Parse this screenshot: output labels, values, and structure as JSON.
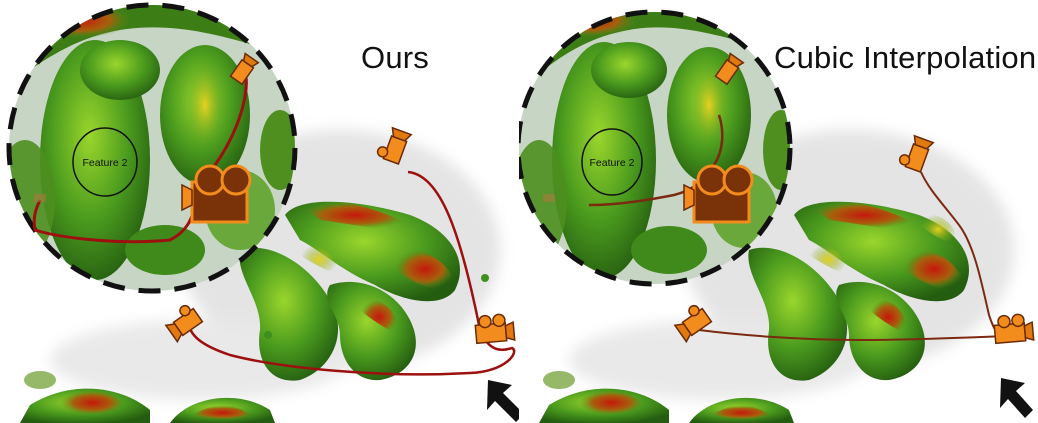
{
  "panels": [
    {
      "caption": "Ours",
      "zoom_label": "Feature 2",
      "path_color": "#9c1010"
    },
    {
      "caption": "Cubic Interpolation",
      "zoom_label": "Feature 2",
      "path_color": "#7a2a10"
    }
  ],
  "colors": {
    "surface_green": "#3f8f1c",
    "surface_light": "#8ed52a",
    "surface_red": "#b32010",
    "camera_orange": "#f28c1c",
    "camera_dark": "#6b2a06"
  },
  "icons": [
    "camera-icon",
    "arrow-icon",
    "magnifier-circle"
  ]
}
